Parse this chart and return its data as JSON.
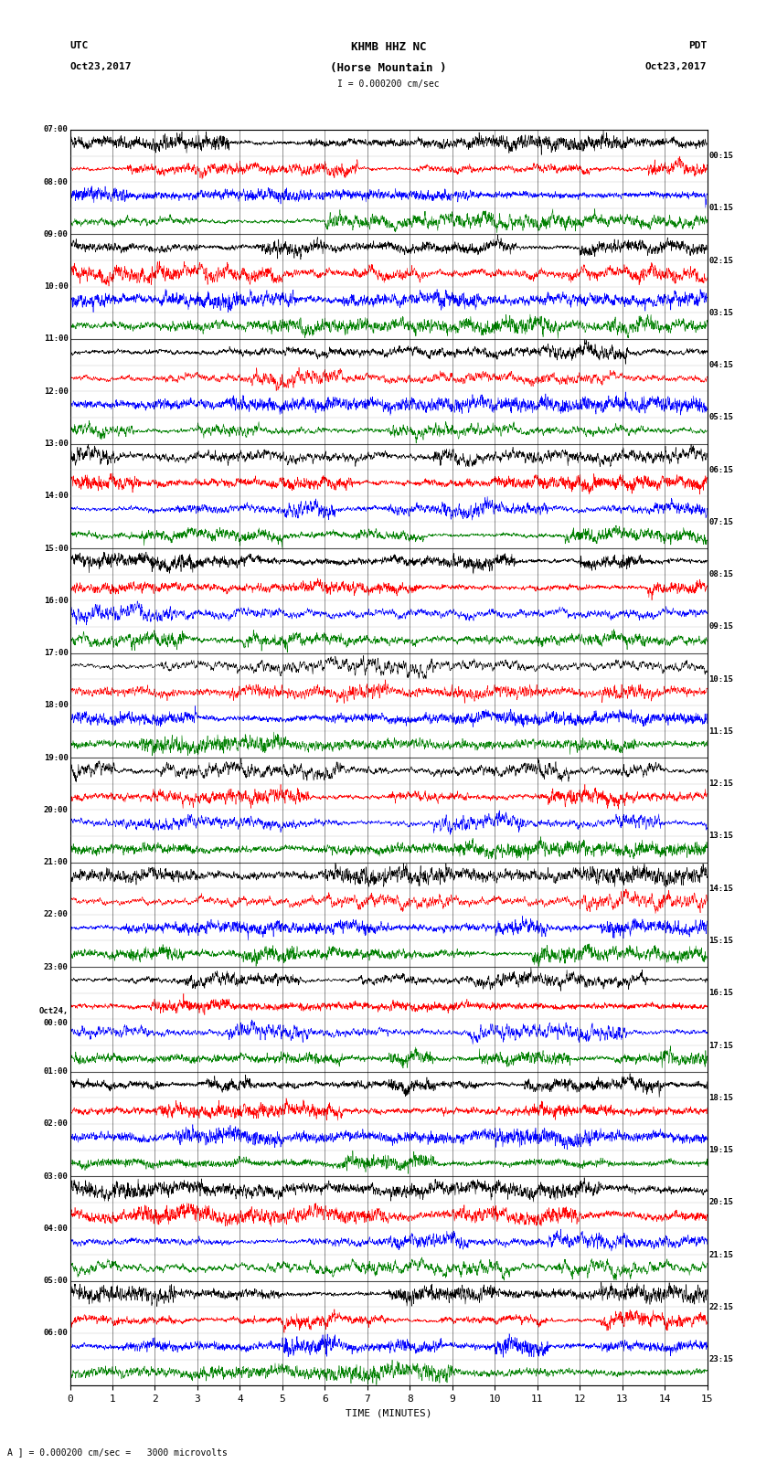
{
  "title_line1": "KHMB HHZ NC",
  "title_line2": "(Horse Mountain )",
  "title_line3": "I = 0.000200 cm/sec",
  "label_left_top": "UTC",
  "label_left_date": "Oct23,2017",
  "label_right_top": "PDT",
  "label_right_date": "Oct23,2017",
  "xlabel": "TIME (MINUTES)",
  "footer": "A ] = 0.000200 cm/sec =   3000 microvolts",
  "time_labels_left": [
    "07:00",
    "08:00",
    "09:00",
    "10:00",
    "11:00",
    "12:00",
    "13:00",
    "14:00",
    "15:00",
    "16:00",
    "17:00",
    "18:00",
    "19:00",
    "20:00",
    "21:00",
    "22:00",
    "23:00",
    "Oct24,\n00:00",
    "01:00",
    "02:00",
    "03:00",
    "04:00",
    "05:00",
    "06:00"
  ],
  "time_labels_right": [
    "00:15",
    "01:15",
    "02:15",
    "03:15",
    "04:15",
    "05:15",
    "06:15",
    "07:15",
    "08:15",
    "09:15",
    "10:15",
    "11:15",
    "12:15",
    "13:15",
    "14:15",
    "15:15",
    "16:15",
    "17:15",
    "18:15",
    "19:15",
    "20:15",
    "21:15",
    "22:15",
    "23:15"
  ],
  "n_rows": 48,
  "total_minutes": 15,
  "xtick_positions": [
    0,
    1,
    2,
    3,
    4,
    5,
    6,
    7,
    8,
    9,
    10,
    11,
    12,
    13,
    14,
    15
  ],
  "trace_colors_cycle": [
    "black",
    "red",
    "blue",
    "green"
  ],
  "bg_color": "white",
  "amplitude_scale": 0.48,
  "noise_seed": 42,
  "linewidth": 0.4
}
